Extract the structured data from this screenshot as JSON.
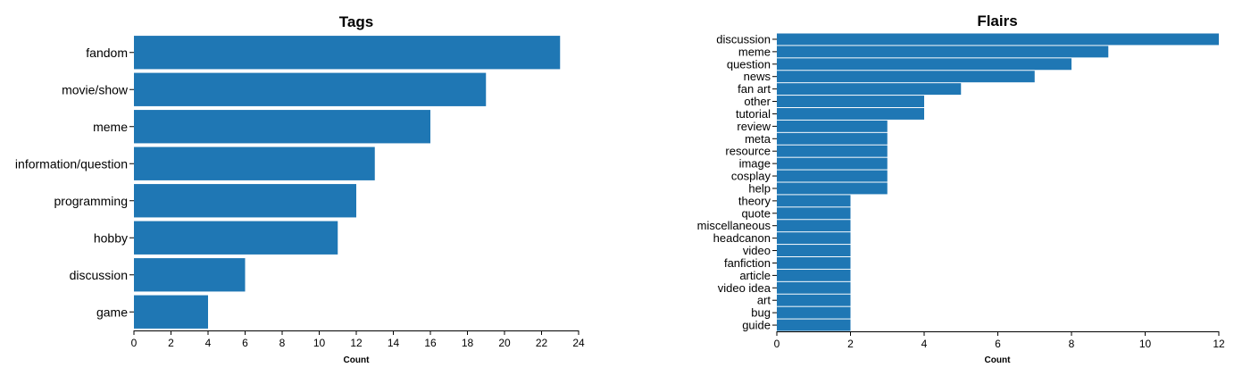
{
  "colors": {
    "bar": "#1f77b4",
    "axis": "#000000"
  },
  "chart_data": [
    {
      "type": "bar",
      "orientation": "horizontal",
      "title": "Tags",
      "xlabel": "Count",
      "ylabel": "",
      "xlim": [
        0,
        24
      ],
      "ticks": [
        "0",
        "2",
        "4",
        "6",
        "8",
        "10",
        "12",
        "14",
        "16",
        "18",
        "20",
        "22",
        "24"
      ],
      "tick_values": [
        0,
        2,
        4,
        6,
        8,
        10,
        12,
        14,
        16,
        18,
        20,
        22,
        24
      ],
      "grid": false,
      "categories": [
        "fandom",
        "movie/show",
        "meme",
        "information/question",
        "programming",
        "hobby",
        "discussion",
        "game"
      ],
      "values": [
        23,
        19,
        16,
        13,
        12,
        11,
        6,
        4
      ]
    },
    {
      "type": "bar",
      "orientation": "horizontal",
      "title": "Flairs",
      "xlabel": "Count",
      "ylabel": "",
      "xlim": [
        0,
        12
      ],
      "ticks": [
        "0",
        "2",
        "4",
        "6",
        "8",
        "10",
        "12"
      ],
      "tick_values": [
        0,
        2,
        4,
        6,
        8,
        10,
        12
      ],
      "grid": false,
      "categories": [
        "discussion",
        "meme",
        "question",
        "news",
        "fan art",
        "other",
        "tutorial",
        "review",
        "meta",
        "resource",
        "image",
        "cosplay",
        "help",
        "theory",
        "quote",
        "miscellaneous",
        "headcanon",
        "video",
        "fanfiction",
        "article",
        "video idea",
        "art",
        "bug",
        "guide"
      ],
      "values": [
        12,
        9,
        8,
        7,
        5,
        4,
        4,
        3,
        3,
        3,
        3,
        3,
        3,
        2,
        2,
        2,
        2,
        2,
        2,
        2,
        2,
        2,
        2,
        2
      ]
    }
  ]
}
